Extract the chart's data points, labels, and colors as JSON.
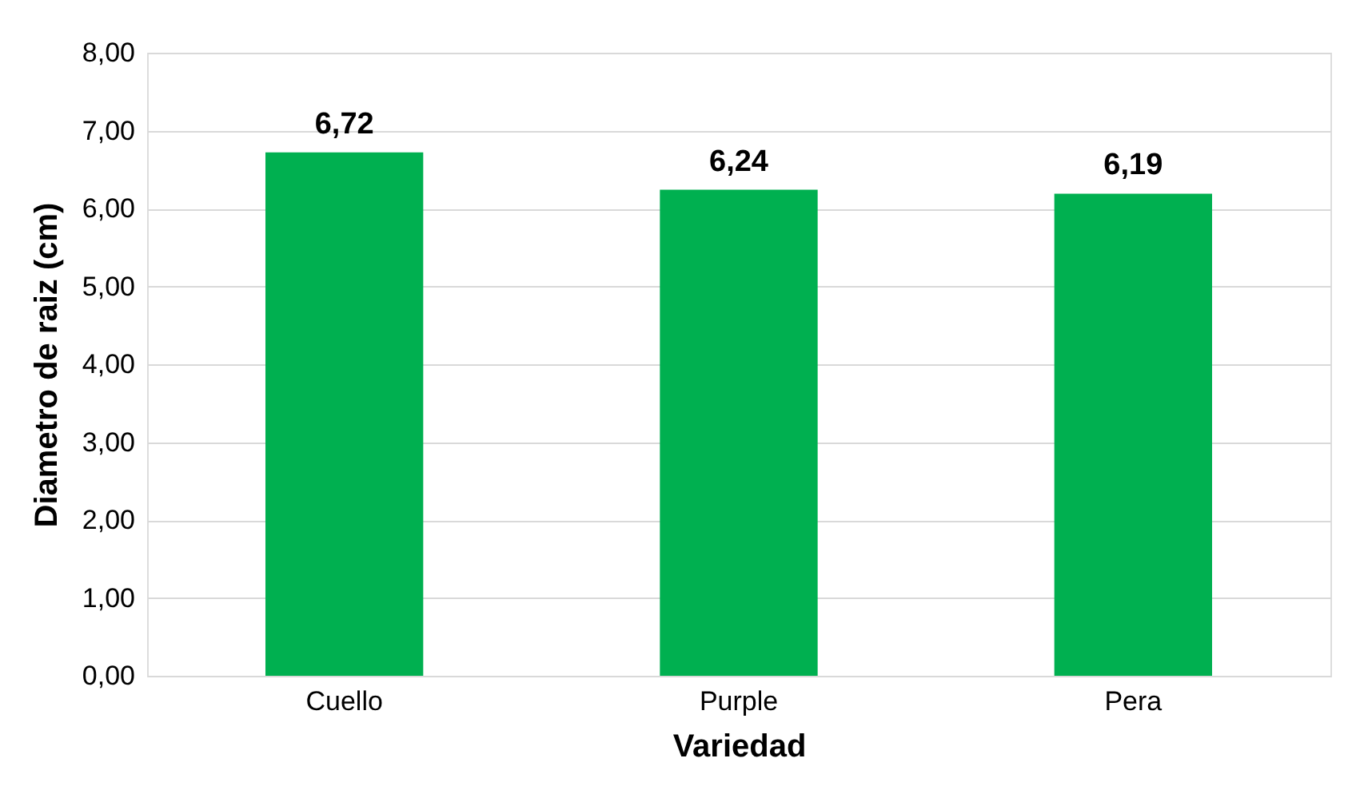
{
  "chart_data": {
    "type": "bar",
    "xlabel": "Variedad",
    "ylabel": "Diametro de raiz (cm)",
    "categories": [
      "Cuello",
      "Purple",
      "Pera"
    ],
    "values": [
      6.72,
      6.24,
      6.19
    ],
    "color": "#00b050",
    "value_labels": [
      "6,72",
      "6,24",
      "6,19"
    ],
    "ylim": [
      0,
      8
    ],
    "yticks": [
      {
        "value": 0,
        "label": "0,00"
      },
      {
        "value": 1,
        "label": "1,00"
      },
      {
        "value": 2,
        "label": "2,00"
      },
      {
        "value": 3,
        "label": "3,00"
      },
      {
        "value": 4,
        "label": "4,00"
      },
      {
        "value": 5,
        "label": "5,00"
      },
      {
        "value": 6,
        "label": "6,00"
      },
      {
        "value": 7,
        "label": "7,00"
      },
      {
        "value": 8,
        "label": "8,00"
      }
    ],
    "grid": "y"
  }
}
